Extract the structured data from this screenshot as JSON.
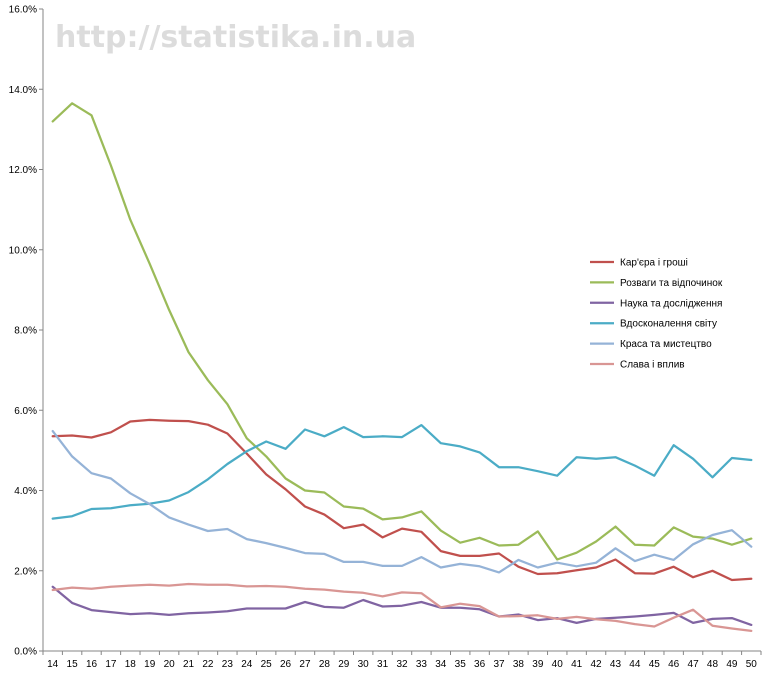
{
  "watermark": "http://statistika.in.ua",
  "chart_data": {
    "type": "line",
    "title": "",
    "xlabel": "",
    "ylabel": "",
    "ylim": [
      0,
      16
    ],
    "yticks": [
      "0.0%",
      "2.0%",
      "4.0%",
      "6.0%",
      "8.0%",
      "10.0%",
      "12.0%",
      "14.0%",
      "16.0%"
    ],
    "grid": "off",
    "legend_position": "right",
    "x": [
      14,
      15,
      16,
      17,
      18,
      19,
      20,
      21,
      22,
      23,
      24,
      25,
      26,
      27,
      28,
      29,
      30,
      31,
      32,
      33,
      34,
      35,
      36,
      37,
      38,
      39,
      40,
      41,
      42,
      43,
      44,
      45,
      46,
      47,
      48,
      49,
      50
    ],
    "series": [
      {
        "name": "Кар'єра і гроші",
        "color": "#c0504d",
        "values": [
          5.35,
          5.37,
          5.32,
          5.45,
          5.72,
          5.76,
          5.74,
          5.73,
          5.64,
          5.42,
          4.92,
          4.4,
          4.03,
          3.6,
          3.4,
          3.06,
          3.15,
          2.83,
          3.05,
          2.97,
          2.49,
          2.37,
          2.37,
          2.43,
          2.1,
          1.92,
          1.94,
          2.01,
          2.08,
          2.28,
          1.94,
          1.93,
          2.1,
          1.84,
          2.0,
          1.77,
          1.8
        ]
      },
      {
        "name": "Розваги та відпочинок",
        "color": "#9bbb59",
        "values": [
          13.2,
          13.65,
          13.35,
          12.1,
          10.75,
          9.65,
          8.5,
          7.45,
          6.75,
          6.15,
          5.3,
          4.85,
          4.3,
          4.0,
          3.95,
          3.6,
          3.55,
          3.28,
          3.33,
          3.48,
          3.0,
          2.7,
          2.82,
          2.63,
          2.65,
          2.98,
          2.28,
          2.45,
          2.73,
          3.1,
          2.65,
          2.63,
          3.08,
          2.85,
          2.8,
          2.65,
          2.8
        ]
      },
      {
        "name": "Наука та дослідження",
        "color": "#8064a2",
        "values": [
          1.6,
          1.2,
          1.02,
          0.97,
          0.92,
          0.94,
          0.9,
          0.94,
          0.96,
          0.99,
          1.06,
          1.06,
          1.06,
          1.22,
          1.1,
          1.08,
          1.27,
          1.11,
          1.13,
          1.22,
          1.08,
          1.08,
          1.04,
          0.86,
          0.91,
          0.77,
          0.82,
          0.7,
          0.8,
          0.83,
          0.86,
          0.9,
          0.95,
          0.7,
          0.8,
          0.82,
          0.65
        ]
      },
      {
        "name": "Вдосконалення світу",
        "color": "#4bacc6",
        "values": [
          3.3,
          3.36,
          3.54,
          3.56,
          3.63,
          3.67,
          3.75,
          3.96,
          4.28,
          4.66,
          4.98,
          5.22,
          5.04,
          5.52,
          5.35,
          5.58,
          5.33,
          5.35,
          5.33,
          5.63,
          5.18,
          5.1,
          4.95,
          4.58,
          4.58,
          4.48,
          4.37,
          4.83,
          4.79,
          4.83,
          4.62,
          4.37,
          5.13,
          4.79,
          4.33,
          4.81,
          4.76
        ]
      },
      {
        "name": "Краса та мистецтво",
        "color": "#95b3d7",
        "values": [
          5.48,
          4.85,
          4.43,
          4.3,
          3.93,
          3.66,
          3.33,
          3.15,
          2.99,
          3.04,
          2.79,
          2.69,
          2.57,
          2.44,
          2.42,
          2.22,
          2.22,
          2.12,
          2.12,
          2.34,
          2.08,
          2.17,
          2.11,
          1.96,
          2.27,
          2.08,
          2.2,
          2.11,
          2.2,
          2.56,
          2.24,
          2.4,
          2.27,
          2.66,
          2.89,
          3.01,
          2.6
        ]
      },
      {
        "name": "Слава і вплив",
        "color": "#d99694",
        "values": [
          1.52,
          1.58,
          1.55,
          1.6,
          1.63,
          1.65,
          1.63,
          1.67,
          1.65,
          1.65,
          1.61,
          1.62,
          1.6,
          1.55,
          1.53,
          1.48,
          1.45,
          1.36,
          1.46,
          1.44,
          1.09,
          1.18,
          1.12,
          0.86,
          0.87,
          0.89,
          0.8,
          0.85,
          0.79,
          0.75,
          0.67,
          0.61,
          0.83,
          1.03,
          0.63,
          0.56,
          0.5
        ]
      }
    ]
  }
}
